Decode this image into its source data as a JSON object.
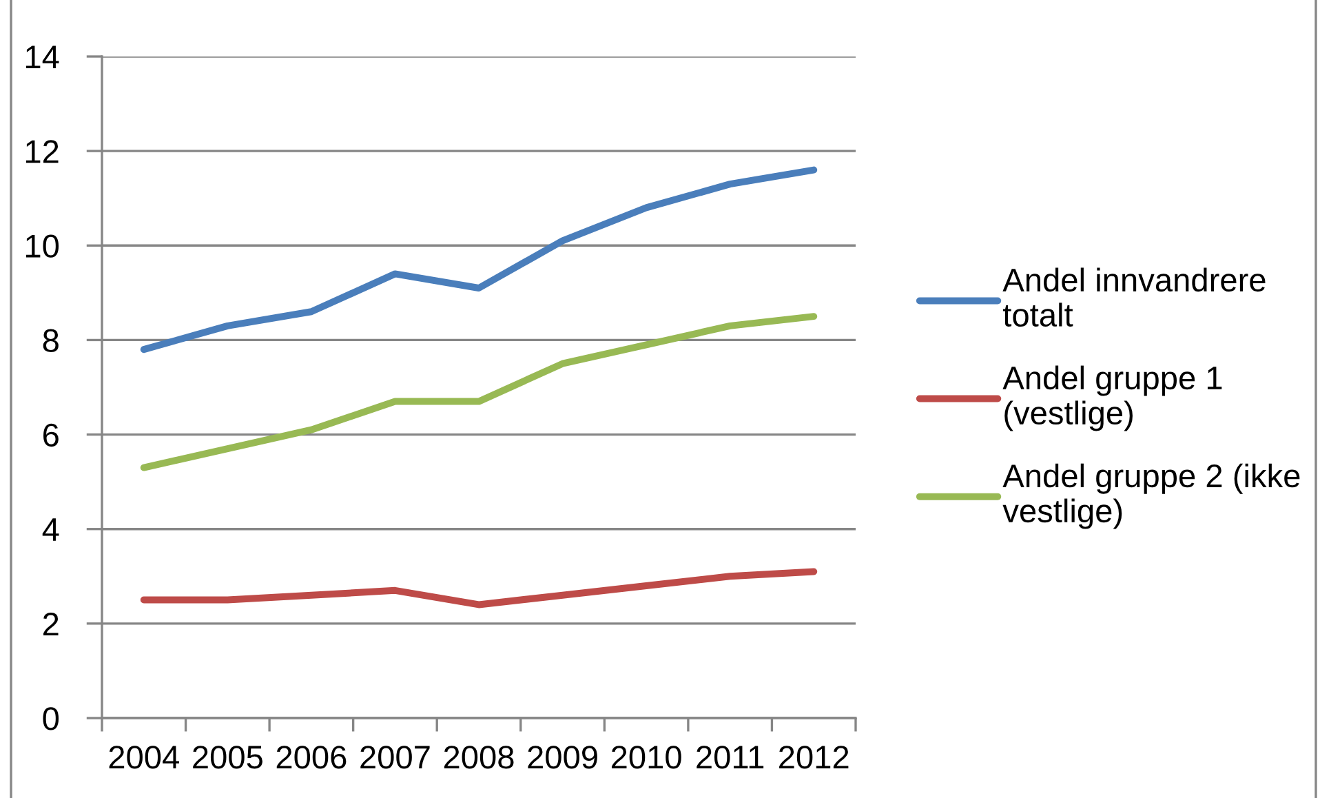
{
  "chart_data": {
    "type": "line",
    "categories": [
      "2004",
      "2005",
      "2006",
      "2007",
      "2008",
      "2009",
      "2010",
      "2011",
      "2012"
    ],
    "series": [
      {
        "name": "Andel innvandrere\ntotalt",
        "color": "#4a7ebb",
        "values": [
          7.8,
          8.3,
          8.6,
          9.4,
          9.1,
          10.1,
          10.8,
          11.3,
          11.6
        ]
      },
      {
        "name": "Andel gruppe 1\n(vestlige)",
        "color": "#be4b48",
        "values": [
          2.5,
          2.5,
          2.6,
          2.7,
          2.4,
          2.6,
          2.8,
          3.0,
          3.1
        ]
      },
      {
        "name": "Andel gruppe 2 (ikke\nvestlige)",
        "color": "#98b954",
        "values": [
          5.3,
          5.7,
          6.1,
          6.7,
          6.7,
          7.5,
          7.9,
          8.3,
          8.5
        ]
      }
    ],
    "ylim": [
      0,
      14
    ],
    "yticks": [
      0,
      2,
      4,
      6,
      8,
      10,
      12,
      14
    ],
    "grid": "y",
    "legend": "right",
    "marker": "none",
    "line_style": "solid"
  }
}
